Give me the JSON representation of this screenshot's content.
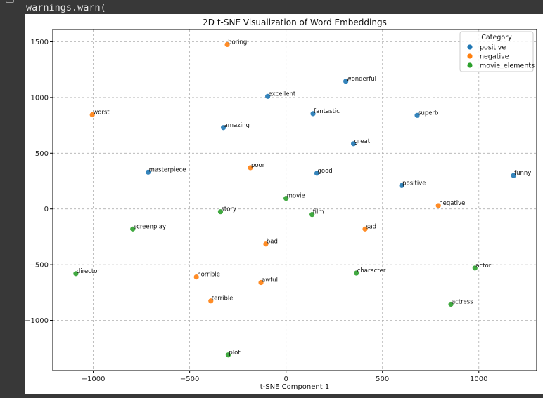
{
  "console": {
    "warning_line": "warnings.warn("
  },
  "chart_data": {
    "type": "scatter",
    "title": "2D t-SNE Visualization of Word Embeddings",
    "xlabel": "t-SNE Component 1",
    "ylabel": "",
    "xlim": [
      -1210,
      1300
    ],
    "ylim": [
      -1450,
      1610
    ],
    "xticks": [
      -1000,
      -500,
      0,
      500,
      1000
    ],
    "yticks": [
      -1000,
      -500,
      0,
      500,
      1000,
      1500
    ],
    "xtick_labels": [
      "−1000",
      "−500",
      "0",
      "500",
      "1000"
    ],
    "ytick_labels": [
      "−1000",
      "−500",
      "0",
      "500",
      "1000",
      "1500"
    ],
    "grid": true,
    "legend": {
      "title": "Category",
      "placement": "upper right"
    },
    "series": [
      {
        "name": "positive",
        "color": "#1f77b4",
        "points": [
          {
            "label": "wonderful",
            "x": 310,
            "y": 1145
          },
          {
            "label": "excellent",
            "x": -95,
            "y": 1010
          },
          {
            "label": "fantastic",
            "x": 140,
            "y": 855
          },
          {
            "label": "superb",
            "x": 680,
            "y": 840
          },
          {
            "label": "amazing",
            "x": -325,
            "y": 730
          },
          {
            "label": "great",
            "x": 350,
            "y": 585
          },
          {
            "label": "masterpiece",
            "x": -715,
            "y": 330
          },
          {
            "label": "good",
            "x": 160,
            "y": 320
          },
          {
            "label": "positive",
            "x": 600,
            "y": 210
          },
          {
            "label": "funny",
            "x": 1180,
            "y": 300
          }
        ]
      },
      {
        "name": "negative",
        "color": "#ff7f0e",
        "points": [
          {
            "label": "boring",
            "x": -305,
            "y": 1475
          },
          {
            "label": "worst",
            "x": -1005,
            "y": 845
          },
          {
            "label": "poor",
            "x": -185,
            "y": 370
          },
          {
            "label": "negative",
            "x": 790,
            "y": 30
          },
          {
            "label": "sad",
            "x": 410,
            "y": -180
          },
          {
            "label": "bad",
            "x": -105,
            "y": -315
          },
          {
            "label": "horrible",
            "x": -465,
            "y": -610
          },
          {
            "label": "awful",
            "x": -130,
            "y": -660
          },
          {
            "label": "terrible",
            "x": -390,
            "y": -825
          }
        ]
      },
      {
        "name": "movie_elements",
        "color": "#2ca02c",
        "points": [
          {
            "label": "movie",
            "x": 0,
            "y": 95
          },
          {
            "label": "story",
            "x": -340,
            "y": -25
          },
          {
            "label": "film",
            "x": 135,
            "y": -50
          },
          {
            "label": "screenplay",
            "x": -795,
            "y": -180
          },
          {
            "label": "director",
            "x": -1090,
            "y": -580
          },
          {
            "label": "character",
            "x": 365,
            "y": -575
          },
          {
            "label": "actor",
            "x": 980,
            "y": -530
          },
          {
            "label": "actress",
            "x": 855,
            "y": -855
          },
          {
            "label": "plot",
            "x": -300,
            "y": -1310
          }
        ]
      }
    ]
  }
}
